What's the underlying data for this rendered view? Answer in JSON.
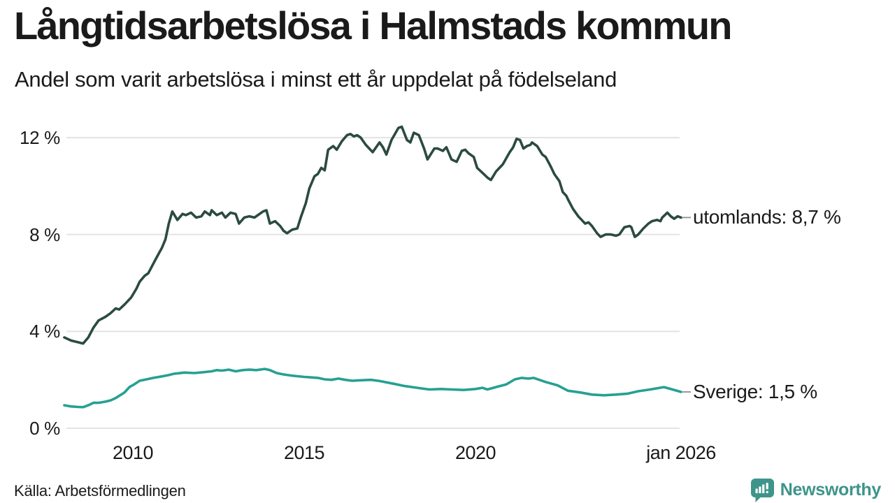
{
  "chart_data": {
    "type": "line",
    "title": "Långtidsarbetslösa i Halmstads kommun",
    "subtitle": "Andel som varit arbetslösa i minst ett år uppdelat på födelseland",
    "unit": "%",
    "grid": "horizontal",
    "grid_color": "#e3e3e3",
    "legend_position": "right-end-labels",
    "ylim": [
      0,
      12.8
    ],
    "x_range_years": [
      2008.0,
      2026.0
    ],
    "y_ticks": [
      {
        "label": "0 %",
        "value": 0
      },
      {
        "label": "4 %",
        "value": 4
      },
      {
        "label": "8 %",
        "value": 8
      },
      {
        "label": "12 %",
        "value": 12
      }
    ],
    "x_ticks": [
      {
        "label": "2010",
        "year": 2010
      },
      {
        "label": "2015",
        "year": 2015
      },
      {
        "label": "2020",
        "year": 2020
      },
      {
        "label": "jan 2026",
        "year": 2026
      }
    ],
    "series": [
      {
        "name": "utomlands",
        "end_label": "utomlands: 8,7 %",
        "end_value": 8.7,
        "color": "#2b4a42",
        "points": [
          [
            2008.0,
            3.75
          ],
          [
            2008.2,
            3.62
          ],
          [
            2008.4,
            3.55
          ],
          [
            2008.55,
            3.5
          ],
          [
            2008.7,
            3.75
          ],
          [
            2008.85,
            4.15
          ],
          [
            2009.0,
            4.45
          ],
          [
            2009.2,
            4.6
          ],
          [
            2009.35,
            4.75
          ],
          [
            2009.5,
            4.95
          ],
          [
            2009.6,
            4.9
          ],
          [
            2009.75,
            5.1
          ],
          [
            2009.95,
            5.4
          ],
          [
            2010.1,
            5.75
          ],
          [
            2010.2,
            6.05
          ],
          [
            2010.35,
            6.3
          ],
          [
            2010.45,
            6.4
          ],
          [
            2010.6,
            6.8
          ],
          [
            2010.75,
            7.2
          ],
          [
            2010.85,
            7.45
          ],
          [
            2010.95,
            7.8
          ],
          [
            2011.05,
            8.45
          ],
          [
            2011.15,
            8.95
          ],
          [
            2011.3,
            8.6
          ],
          [
            2011.45,
            8.85
          ],
          [
            2011.55,
            8.8
          ],
          [
            2011.7,
            8.9
          ],
          [
            2011.85,
            8.7
          ],
          [
            2012.0,
            8.75
          ],
          [
            2012.1,
            8.95
          ],
          [
            2012.25,
            8.8
          ],
          [
            2012.3,
            9.0
          ],
          [
            2012.45,
            8.8
          ],
          [
            2012.6,
            8.9
          ],
          [
            2012.7,
            8.7
          ],
          [
            2012.85,
            8.9
          ],
          [
            2013.0,
            8.85
          ],
          [
            2013.1,
            8.45
          ],
          [
            2013.25,
            8.7
          ],
          [
            2013.4,
            8.75
          ],
          [
            2013.55,
            8.7
          ],
          [
            2013.65,
            8.8
          ],
          [
            2013.8,
            8.95
          ],
          [
            2013.9,
            9.0
          ],
          [
            2014.0,
            8.45
          ],
          [
            2014.15,
            8.55
          ],
          [
            2014.3,
            8.35
          ],
          [
            2014.4,
            8.15
          ],
          [
            2014.5,
            8.05
          ],
          [
            2014.65,
            8.2
          ],
          [
            2014.8,
            8.25
          ],
          [
            2014.9,
            8.7
          ],
          [
            2015.05,
            9.3
          ],
          [
            2015.15,
            9.9
          ],
          [
            2015.3,
            10.4
          ],
          [
            2015.4,
            10.5
          ],
          [
            2015.5,
            10.75
          ],
          [
            2015.6,
            10.65
          ],
          [
            2015.7,
            11.5
          ],
          [
            2015.85,
            11.65
          ],
          [
            2015.95,
            11.5
          ],
          [
            2016.1,
            11.85
          ],
          [
            2016.25,
            12.1
          ],
          [
            2016.35,
            12.15
          ],
          [
            2016.45,
            12.05
          ],
          [
            2016.55,
            12.1
          ],
          [
            2016.65,
            12.0
          ],
          [
            2016.8,
            11.7
          ],
          [
            2017.0,
            11.4
          ],
          [
            2017.2,
            11.8
          ],
          [
            2017.3,
            11.6
          ],
          [
            2017.4,
            11.3
          ],
          [
            2017.55,
            11.9
          ],
          [
            2017.75,
            12.4
          ],
          [
            2017.85,
            12.45
          ],
          [
            2018.0,
            11.9
          ],
          [
            2018.1,
            11.8
          ],
          [
            2018.2,
            12.2
          ],
          [
            2018.35,
            12.1
          ],
          [
            2018.5,
            11.55
          ],
          [
            2018.6,
            11.1
          ],
          [
            2018.8,
            11.55
          ],
          [
            2018.9,
            11.55
          ],
          [
            2019.05,
            11.45
          ],
          [
            2019.15,
            11.6
          ],
          [
            2019.3,
            11.1
          ],
          [
            2019.45,
            11.0
          ],
          [
            2019.6,
            11.45
          ],
          [
            2019.7,
            11.5
          ],
          [
            2019.8,
            11.35
          ],
          [
            2019.95,
            11.2
          ],
          [
            2020.05,
            10.75
          ],
          [
            2020.2,
            10.55
          ],
          [
            2020.35,
            10.35
          ],
          [
            2020.45,
            10.25
          ],
          [
            2020.6,
            10.6
          ],
          [
            2020.8,
            10.9
          ],
          [
            2021.0,
            11.4
          ],
          [
            2021.1,
            11.6
          ],
          [
            2021.2,
            11.95
          ],
          [
            2021.3,
            11.9
          ],
          [
            2021.4,
            11.55
          ],
          [
            2021.5,
            11.65
          ],
          [
            2021.6,
            11.7
          ],
          [
            2021.65,
            11.8
          ],
          [
            2021.8,
            11.65
          ],
          [
            2021.95,
            11.3
          ],
          [
            2022.05,
            11.2
          ],
          [
            2022.2,
            10.8
          ],
          [
            2022.3,
            10.5
          ],
          [
            2022.45,
            10.2
          ],
          [
            2022.55,
            9.75
          ],
          [
            2022.65,
            9.6
          ],
          [
            2022.7,
            9.45
          ],
          [
            2022.85,
            9.05
          ],
          [
            2023.0,
            8.75
          ],
          [
            2023.1,
            8.6
          ],
          [
            2023.2,
            8.45
          ],
          [
            2023.3,
            8.5
          ],
          [
            2023.4,
            8.35
          ],
          [
            2023.55,
            8.05
          ],
          [
            2023.65,
            7.9
          ],
          [
            2023.8,
            8.0
          ],
          [
            2023.95,
            8.0
          ],
          [
            2024.1,
            7.95
          ],
          [
            2024.2,
            8.0
          ],
          [
            2024.35,
            8.3
          ],
          [
            2024.5,
            8.35
          ],
          [
            2024.55,
            8.3
          ],
          [
            2024.65,
            7.9
          ],
          [
            2024.75,
            8.0
          ],
          [
            2024.9,
            8.25
          ],
          [
            2025.05,
            8.45
          ],
          [
            2025.15,
            8.55
          ],
          [
            2025.3,
            8.6
          ],
          [
            2025.4,
            8.55
          ],
          [
            2025.45,
            8.7
          ],
          [
            2025.6,
            8.9
          ],
          [
            2025.7,
            8.75
          ],
          [
            2025.8,
            8.65
          ],
          [
            2025.9,
            8.75
          ],
          [
            2026.0,
            8.7
          ]
        ]
      },
      {
        "name": "Sverige",
        "end_label": "Sverige: 1,5 %",
        "end_value": 1.5,
        "color": "#26a092",
        "points": [
          [
            2008.0,
            0.95
          ],
          [
            2008.2,
            0.9
          ],
          [
            2008.4,
            0.88
          ],
          [
            2008.55,
            0.87
          ],
          [
            2008.7,
            0.95
          ],
          [
            2008.85,
            1.05
          ],
          [
            2009.0,
            1.05
          ],
          [
            2009.2,
            1.1
          ],
          [
            2009.35,
            1.15
          ],
          [
            2009.5,
            1.25
          ],
          [
            2009.75,
            1.47
          ],
          [
            2009.9,
            1.7
          ],
          [
            2010.05,
            1.82
          ],
          [
            2010.2,
            1.96
          ],
          [
            2010.4,
            2.02
          ],
          [
            2010.6,
            2.08
          ],
          [
            2010.8,
            2.13
          ],
          [
            2011.0,
            2.18
          ],
          [
            2011.2,
            2.25
          ],
          [
            2011.5,
            2.3
          ],
          [
            2011.8,
            2.28
          ],
          [
            2012.1,
            2.32
          ],
          [
            2012.3,
            2.35
          ],
          [
            2012.45,
            2.4
          ],
          [
            2012.6,
            2.38
          ],
          [
            2012.8,
            2.42
          ],
          [
            2013.0,
            2.35
          ],
          [
            2013.2,
            2.4
          ],
          [
            2013.4,
            2.42
          ],
          [
            2013.6,
            2.4
          ],
          [
            2013.85,
            2.45
          ],
          [
            2014.0,
            2.4
          ],
          [
            2014.2,
            2.28
          ],
          [
            2014.4,
            2.22
          ],
          [
            2014.6,
            2.18
          ],
          [
            2014.8,
            2.15
          ],
          [
            2015.0,
            2.12
          ],
          [
            2015.2,
            2.1
          ],
          [
            2015.4,
            2.08
          ],
          [
            2015.6,
            2.02
          ],
          [
            2015.8,
            2.0
          ],
          [
            2016.0,
            2.05
          ],
          [
            2016.2,
            2.0
          ],
          [
            2016.4,
            1.96
          ],
          [
            2016.6,
            1.98
          ],
          [
            2016.95,
            2.0
          ],
          [
            2017.2,
            1.95
          ],
          [
            2017.6,
            1.84
          ],
          [
            2017.9,
            1.75
          ],
          [
            2018.3,
            1.67
          ],
          [
            2018.65,
            1.6
          ],
          [
            2019.0,
            1.62
          ],
          [
            2019.3,
            1.6
          ],
          [
            2019.65,
            1.58
          ],
          [
            2020.0,
            1.62
          ],
          [
            2020.2,
            1.67
          ],
          [
            2020.35,
            1.6
          ],
          [
            2020.65,
            1.72
          ],
          [
            2020.9,
            1.81
          ],
          [
            2021.15,
            2.02
          ],
          [
            2021.35,
            2.08
          ],
          [
            2021.55,
            2.05
          ],
          [
            2021.7,
            2.08
          ],
          [
            2022.05,
            1.91
          ],
          [
            2022.4,
            1.77
          ],
          [
            2022.7,
            1.55
          ],
          [
            2023.05,
            1.48
          ],
          [
            2023.4,
            1.39
          ],
          [
            2023.75,
            1.36
          ],
          [
            2024.1,
            1.39
          ],
          [
            2024.45,
            1.43
          ],
          [
            2024.75,
            1.53
          ],
          [
            2025.1,
            1.6
          ],
          [
            2025.5,
            1.7
          ],
          [
            2025.75,
            1.6
          ],
          [
            2026.0,
            1.5
          ]
        ]
      }
    ]
  },
  "footer": {
    "source": "Källa: Arbetsförmedlingen",
    "brand": "Newsworthy",
    "brand_color": "#3e948b"
  }
}
